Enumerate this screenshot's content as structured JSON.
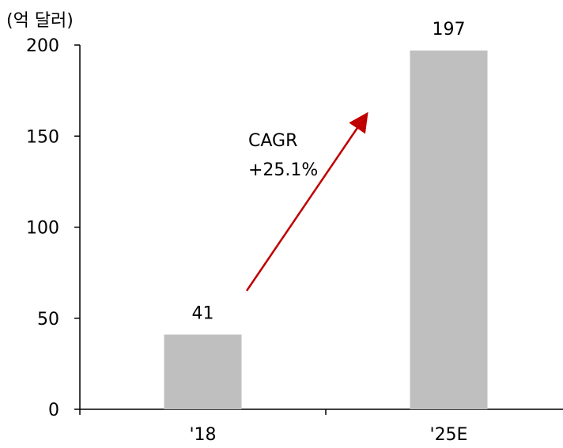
{
  "chart_data": {
    "type": "bar",
    "unit_label": "(억 달러)",
    "categories": [
      "'18",
      "'25E"
    ],
    "values": [
      41,
      197
    ],
    "data_labels": [
      "41",
      "197"
    ],
    "ylim": [
      0,
      200
    ],
    "yticks": [
      0,
      50,
      100,
      150,
      200
    ],
    "title": "",
    "xlabel": "",
    "ylabel": "",
    "grid": false,
    "annotation": {
      "line1": "CAGR",
      "line2": "+25.1%"
    },
    "colors": {
      "bar": "#bfbfbf",
      "arrow": "#c00000",
      "axis": "#000000"
    }
  }
}
